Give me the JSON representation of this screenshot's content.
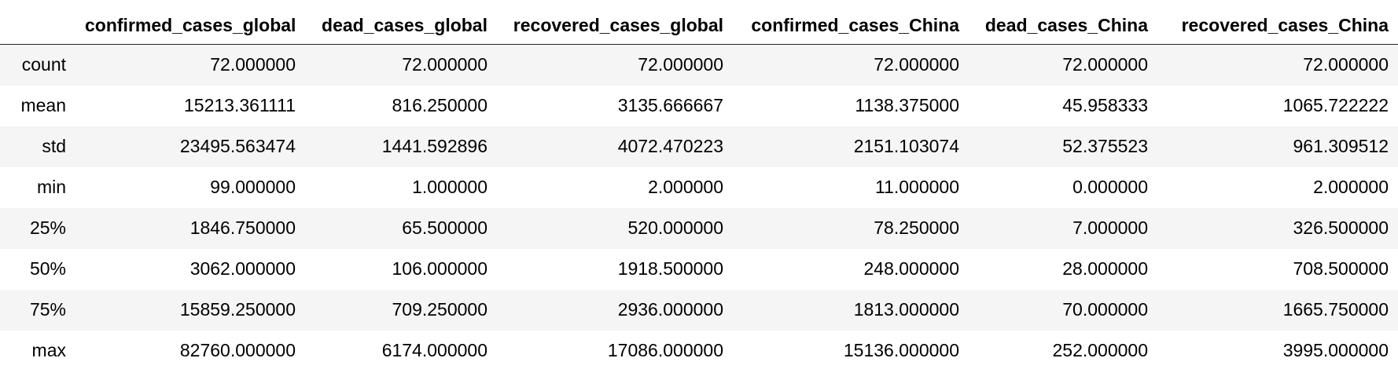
{
  "table": {
    "columns": [
      "",
      "confirmed_cases_global",
      "dead_cases_global",
      "recovered_cases_global",
      "confirmed_cases_China",
      "dead_cases_China",
      "recovered_cases_China"
    ],
    "rows": [
      {
        "label": "count",
        "values": [
          "72.000000",
          "72.000000",
          "72.000000",
          "72.000000",
          "72.000000",
          "72.000000"
        ]
      },
      {
        "label": "mean",
        "values": [
          "15213.361111",
          "816.250000",
          "3135.666667",
          "1138.375000",
          "45.958333",
          "1065.722222"
        ]
      },
      {
        "label": "std",
        "values": [
          "23495.563474",
          "1441.592896",
          "4072.470223",
          "2151.103074",
          "52.375523",
          "961.309512"
        ]
      },
      {
        "label": "min",
        "values": [
          "99.000000",
          "1.000000",
          "2.000000",
          "11.000000",
          "0.000000",
          "2.000000"
        ]
      },
      {
        "label": "25%",
        "values": [
          "1846.750000",
          "65.500000",
          "520.000000",
          "78.250000",
          "7.000000",
          "326.500000"
        ]
      },
      {
        "label": "50%",
        "values": [
          "3062.000000",
          "106.000000",
          "1918.500000",
          "248.000000",
          "28.000000",
          "708.500000"
        ]
      },
      {
        "label": "75%",
        "values": [
          "15859.250000",
          "709.250000",
          "2936.000000",
          "1813.000000",
          "70.000000",
          "1665.750000"
        ]
      },
      {
        "label": "max",
        "values": [
          "82760.000000",
          "6174.000000",
          "17086.000000",
          "15136.000000",
          "252.000000",
          "3995.000000"
        ]
      }
    ]
  }
}
